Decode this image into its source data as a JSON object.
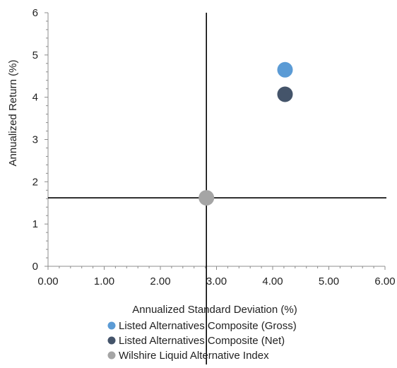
{
  "chart_data": {
    "type": "scatter",
    "title": "",
    "xlabel": "Annualized Standard Deviation (%)",
    "ylabel": "Annualized Return (%)",
    "xlim": [
      0,
      6
    ],
    "ylim": [
      0,
      6
    ],
    "x_ticks": [
      "0.00",
      "1.00",
      "2.00",
      "3.00",
      "4.00",
      "5.00",
      "6.00"
    ],
    "y_ticks": [
      "0",
      "1",
      "2",
      "3",
      "4",
      "5",
      "6"
    ],
    "grid": false,
    "legend_position": "bottom",
    "reference_lines": {
      "vertical_x": 2.82,
      "horizontal_y": 1.62
    },
    "series": [
      {
        "name": "Listed Alternatives Composite (Gross)",
        "x": [
          4.22
        ],
        "y": [
          4.65
        ],
        "color": "#5b9bd5"
      },
      {
        "name": "Listed Alternatives Composite (Net)",
        "x": [
          4.22
        ],
        "y": [
          4.07
        ],
        "color": "#44546a"
      },
      {
        "name": "Wilshire Liquid Alternative Index",
        "x": [
          2.82
        ],
        "y": [
          1.62
        ],
        "color": "#a5a5a5"
      }
    ]
  }
}
